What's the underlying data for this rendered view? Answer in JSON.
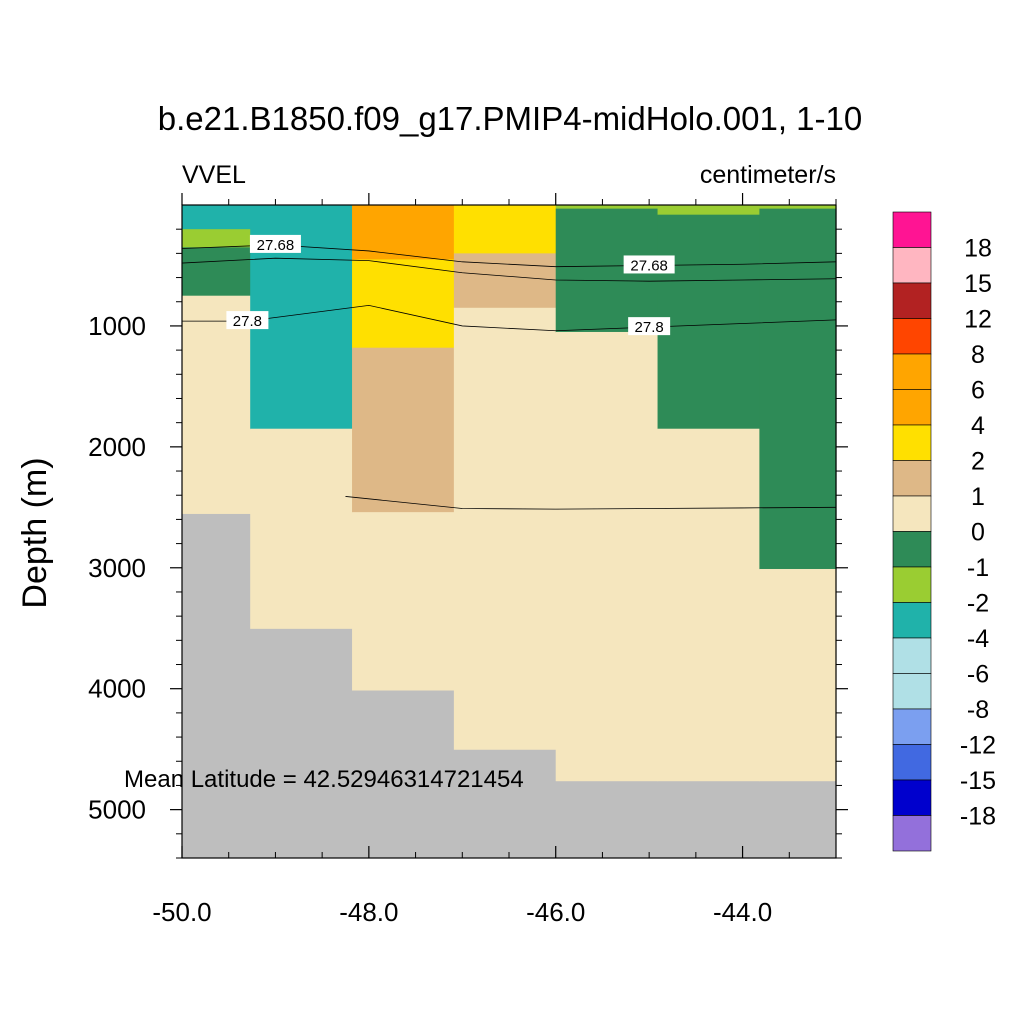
{
  "chart_data": {
    "type": "heatmap",
    "title": "b.e21.B1850.f09_g17.PMIP4-midHolo.001, 1-10",
    "left_string": "VVEL",
    "right_string": "centimeter/s",
    "ylabel": "Depth (m)",
    "xlabel": "",
    "xlim": [
      -50.0,
      -43.0
    ],
    "ylim": [
      5400,
      0
    ],
    "xticks": [
      {
        "value": -50.0,
        "label": "-50.0"
      },
      {
        "value": -48.0,
        "label": "-48.0"
      },
      {
        "value": -46.0,
        "label": "-46.0"
      },
      {
        "value": -44.0,
        "label": "-44.0"
      }
    ],
    "yticks": [
      {
        "value": 1000,
        "label": "1000"
      },
      {
        "value": 2000,
        "label": "2000"
      },
      {
        "value": 3000,
        "label": "3000"
      },
      {
        "value": 4000,
        "label": "4000"
      },
      {
        "value": 5000,
        "label": "5000"
      }
    ],
    "annotation": "Mean Latitude = 42.52946314721454",
    "missing_color": "#BEBEBE",
    "colorbar": {
      "labels": [
        "18",
        "15",
        "12",
        "8",
        "6",
        "4",
        "2",
        "1",
        "0",
        "-1",
        "-2",
        "-4",
        "-6",
        "-8",
        "-12",
        "-15",
        "-18"
      ],
      "colors": [
        "#FF1493",
        "#FFB6C1",
        "#B22222",
        "#FF4500",
        "#FFA500",
        "#FFA500",
        "#FFE000",
        "#DEB887",
        "#F5E6BE",
        "#2E8B57",
        "#9ACD32",
        "#20B2AA",
        "#B0E0E6",
        "#B0E0E6",
        "#7B9FF0",
        "#4169E1",
        "#0000CD",
        "#9370DB"
      ]
    },
    "cells": [
      {
        "x0": -50.0,
        "x1": -49.27,
        "d0": 0,
        "d1": 200,
        "value": -3,
        "color": "#20B2AA"
      },
      {
        "x0": -50.0,
        "x1": -49.27,
        "d0": 200,
        "d1": 350,
        "value": -1.5,
        "color": "#9ACD32"
      },
      {
        "x0": -50.0,
        "x1": -49.27,
        "d0": 350,
        "d1": 750,
        "value": -0.5,
        "color": "#2E8B57"
      },
      {
        "x0": -50.0,
        "x1": -49.27,
        "d0": 750,
        "d1": 2550,
        "value": 0.5,
        "color": "#F5E6BE"
      },
      {
        "x0": -49.27,
        "x1": -48.18,
        "d0": 0,
        "d1": 1850,
        "value": -3,
        "color": "#20B2AA"
      },
      {
        "x0": -49.27,
        "x1": -48.18,
        "d0": 1850,
        "d1": 3500,
        "value": 0.5,
        "color": "#F5E6BE"
      },
      {
        "x0": -48.18,
        "x1": -47.09,
        "d0": 0,
        "d1": 450,
        "value": 5,
        "color": "#FFA500"
      },
      {
        "x0": -48.18,
        "x1": -47.09,
        "d0": 450,
        "d1": 1180,
        "value": 3,
        "color": "#FFE000"
      },
      {
        "x0": -48.18,
        "x1": -47.09,
        "d0": 1180,
        "d1": 2540,
        "value": 1.5,
        "color": "#DEB887"
      },
      {
        "x0": -48.18,
        "x1": -47.09,
        "d0": 2540,
        "d1": 4010,
        "value": 0.5,
        "color": "#F5E6BE"
      },
      {
        "x0": -47.09,
        "x1": -46.0,
        "d0": 0,
        "d1": 400,
        "value": 3,
        "color": "#FFE000"
      },
      {
        "x0": -47.09,
        "x1": -46.0,
        "d0": 400,
        "d1": 850,
        "value": 1.5,
        "color": "#DEB887"
      },
      {
        "x0": -47.09,
        "x1": -46.0,
        "d0": 850,
        "d1": 4500,
        "value": 0.5,
        "color": "#F5E6BE"
      },
      {
        "x0": -46.0,
        "x1": -44.91,
        "d0": 0,
        "d1": 30,
        "value": -1.5,
        "color": "#9ACD32"
      },
      {
        "x0": -46.0,
        "x1": -44.91,
        "d0": 30,
        "d1": 1050,
        "value": -0.5,
        "color": "#2E8B57"
      },
      {
        "x0": -46.0,
        "x1": -44.91,
        "d0": 1050,
        "d1": 4760,
        "value": 0.5,
        "color": "#F5E6BE"
      },
      {
        "x0": -44.91,
        "x1": -43.82,
        "d0": 0,
        "d1": 80,
        "value": -1.5,
        "color": "#9ACD32"
      },
      {
        "x0": -44.91,
        "x1": -43.82,
        "d0": 80,
        "d1": 1850,
        "value": -0.5,
        "color": "#2E8B57"
      },
      {
        "x0": -44.91,
        "x1": -43.82,
        "d0": 1850,
        "d1": 4760,
        "value": 0.5,
        "color": "#F5E6BE"
      },
      {
        "x0": -43.82,
        "x1": -43.0,
        "d0": 0,
        "d1": 30,
        "value": -1.5,
        "color": "#9ACD32"
      },
      {
        "x0": -43.82,
        "x1": -43.0,
        "d0": 30,
        "d1": 3010,
        "value": -0.5,
        "color": "#2E8B57"
      },
      {
        "x0": -43.82,
        "x1": -43.0,
        "d0": 3010,
        "d1": 4760,
        "value": 0.5,
        "color": "#F5E6BE"
      }
    ],
    "contours": [
      {
        "level": "27.68",
        "labels": [
          "27.68",
          "27.68"
        ],
        "points": [
          [
            -50.0,
            360
          ],
          [
            -49.0,
            330
          ],
          [
            -48.0,
            380
          ],
          [
            -47.0,
            470
          ],
          [
            -46.0,
            510
          ],
          [
            -45.0,
            500
          ],
          [
            -44.0,
            490
          ],
          [
            -43.0,
            470
          ]
        ]
      },
      {
        "level": "",
        "labels": [],
        "points": [
          [
            -50.0,
            480
          ],
          [
            -49.0,
            440
          ],
          [
            -48.0,
            460
          ],
          [
            -47.0,
            560
          ],
          [
            -46.0,
            620
          ],
          [
            -45.0,
            630
          ],
          [
            -44.0,
            620
          ],
          [
            -43.0,
            610
          ]
        ]
      },
      {
        "level": "27.8",
        "labels": [
          "27.8",
          "27.8"
        ],
        "points": [
          [
            -50.0,
            960
          ],
          [
            -49.3,
            960
          ],
          [
            -48.0,
            830
          ],
          [
            -47.0,
            1000
          ],
          [
            -46.0,
            1040
          ],
          [
            -45.0,
            1010
          ],
          [
            -44.0,
            980
          ],
          [
            -43.0,
            950
          ]
        ]
      },
      {
        "level": "",
        "labels": [],
        "points": [
          [
            -48.25,
            2410
          ],
          [
            -47.0,
            2510
          ],
          [
            -46.0,
            2515
          ],
          [
            -45.0,
            2510
          ],
          [
            -44.0,
            2505
          ],
          [
            -43.0,
            2500
          ]
        ]
      }
    ],
    "bathymetry": [
      {
        "x0": -50.0,
        "x1": -49.27,
        "depth": 2550
      },
      {
        "x0": -49.27,
        "x1": -48.18,
        "depth": 3500
      },
      {
        "x0": -48.18,
        "x1": -47.09,
        "depth": 4010
      },
      {
        "x0": -47.09,
        "x1": -46.0,
        "depth": 4500
      },
      {
        "x0": -46.0,
        "x1": -43.0,
        "depth": 4760
      }
    ]
  }
}
